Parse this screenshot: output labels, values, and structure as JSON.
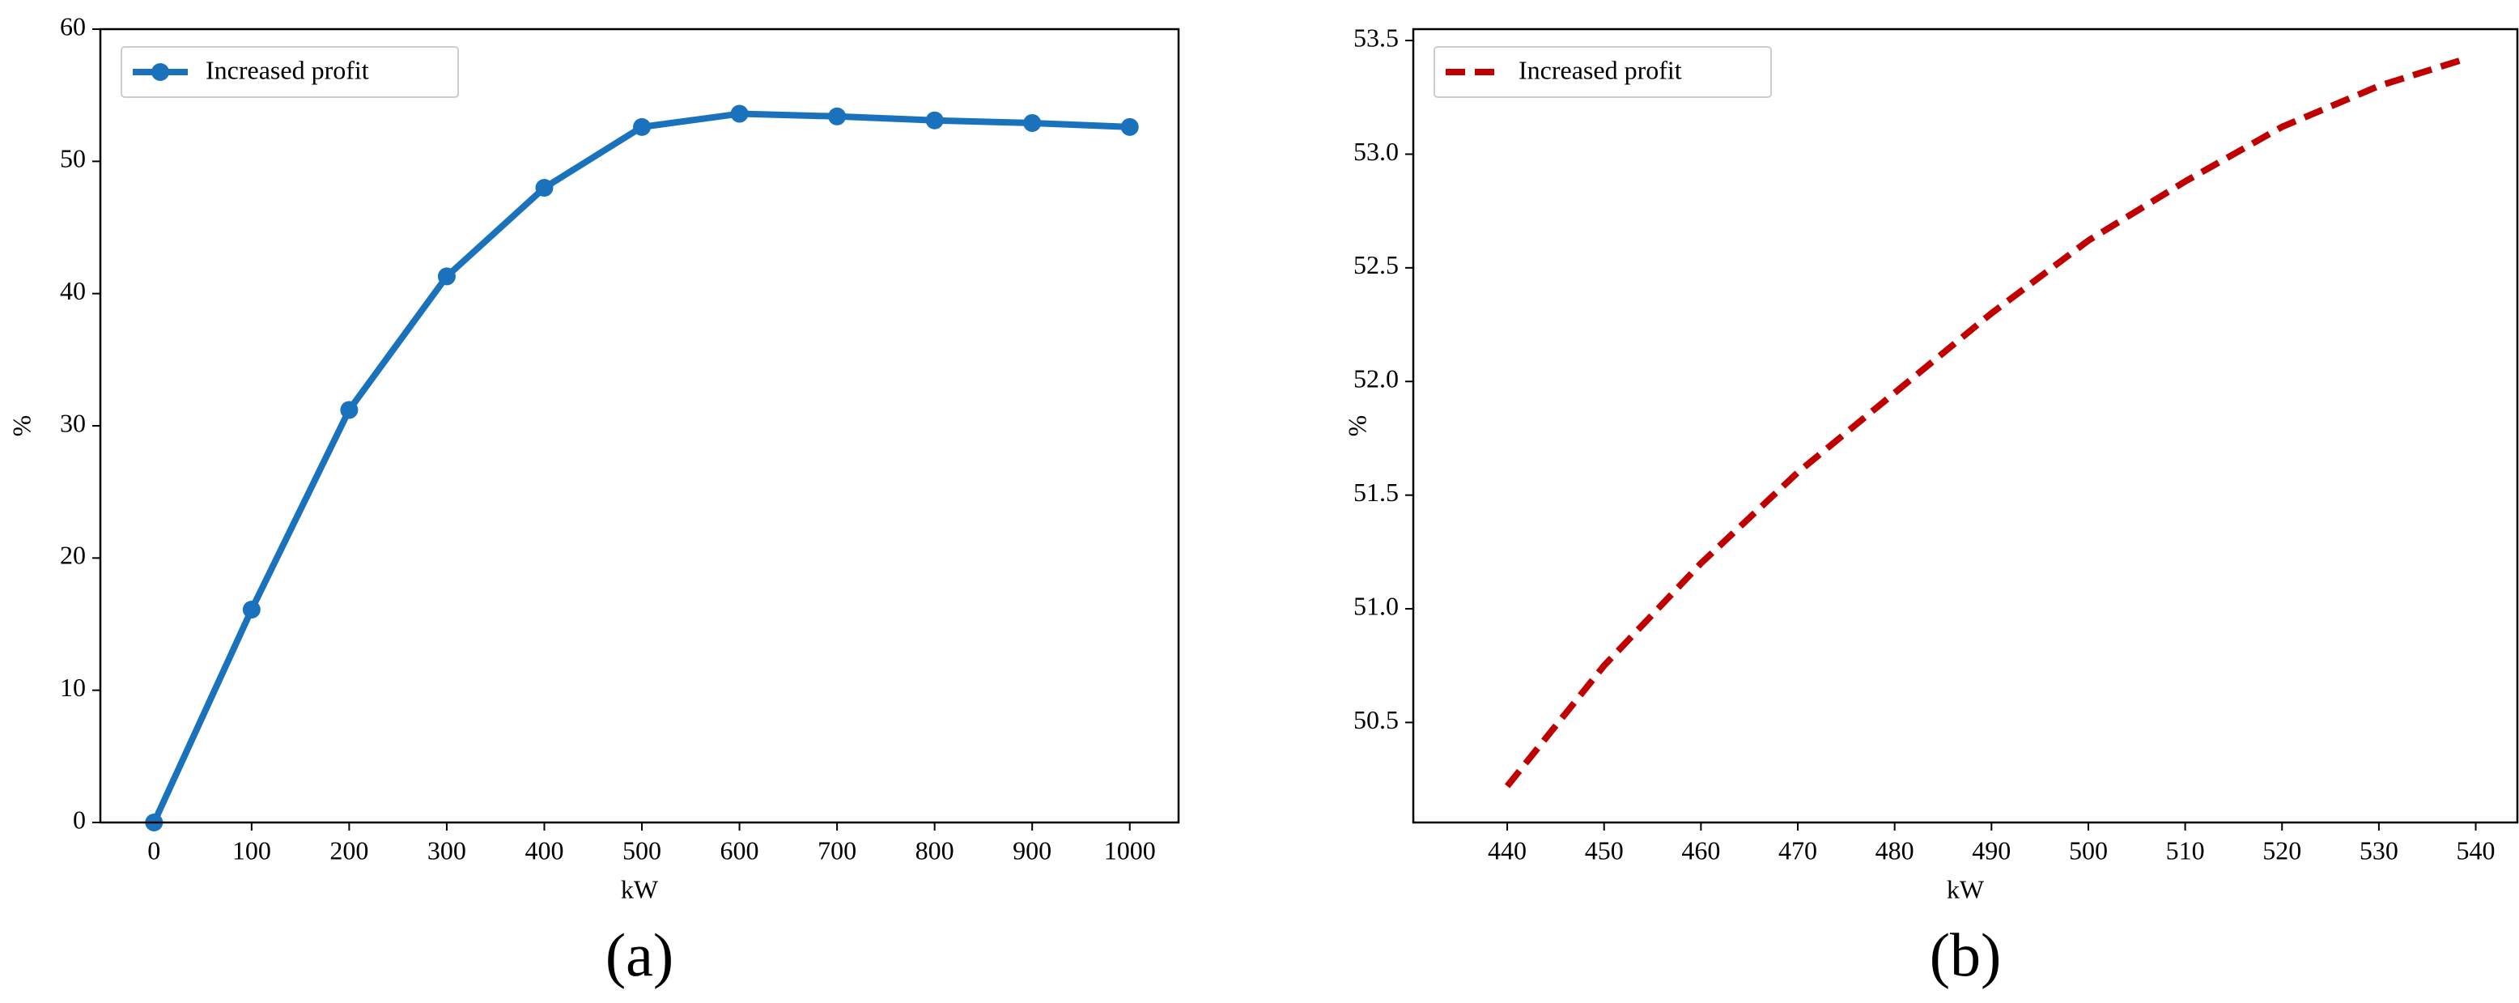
{
  "chart_data": [
    {
      "type": "line",
      "label": "(a)",
      "xlabel": "kW",
      "ylabel": "%",
      "x": [
        0,
        100,
        200,
        300,
        400,
        500,
        600,
        700,
        800,
        900,
        1000
      ],
      "series": [
        {
          "name": "Increased profit",
          "color": "#1a72bd",
          "linestyle": "solid",
          "marker": "o",
          "values": [
            0,
            16.1,
            31.2,
            41.3,
            48.0,
            52.6,
            53.6,
            53.4,
            53.1,
            52.9,
            52.6
          ]
        }
      ],
      "xlim": [
        -55,
        1050
      ],
      "ylim": [
        0,
        60
      ],
      "xticks": [
        0,
        100,
        200,
        300,
        400,
        500,
        600,
        700,
        800,
        900,
        1000
      ],
      "yticks": [
        0,
        10,
        20,
        30,
        40,
        50,
        60
      ],
      "legend": "upper left"
    },
    {
      "type": "line",
      "label": "(b)",
      "xlabel": "kW",
      "ylabel": "%",
      "x": [
        440,
        450,
        460,
        470,
        480,
        490,
        500,
        510,
        520,
        530,
        539
      ],
      "series": [
        {
          "name": "Increased profit",
          "color": "#c00000",
          "linestyle": "dashed",
          "values": [
            50.22,
            50.75,
            51.2,
            51.6,
            51.95,
            52.3,
            52.62,
            52.88,
            53.12,
            53.3,
            53.42
          ]
        }
      ],
      "xlim": [
        430.3,
        544.3
      ],
      "ylim": [
        50.06,
        53.55
      ],
      "xticks": [
        440,
        450,
        460,
        470,
        480,
        490,
        500,
        510,
        520,
        530,
        540
      ],
      "yticks": [
        50.5,
        {
          "value": 51,
          "label": "51.0"
        },
        51.5,
        {
          "value": 52,
          "label": "52.0"
        },
        52.5,
        {
          "value": 53,
          "label": "53.0"
        },
        53.5
      ],
      "legend": "upper left"
    }
  ]
}
